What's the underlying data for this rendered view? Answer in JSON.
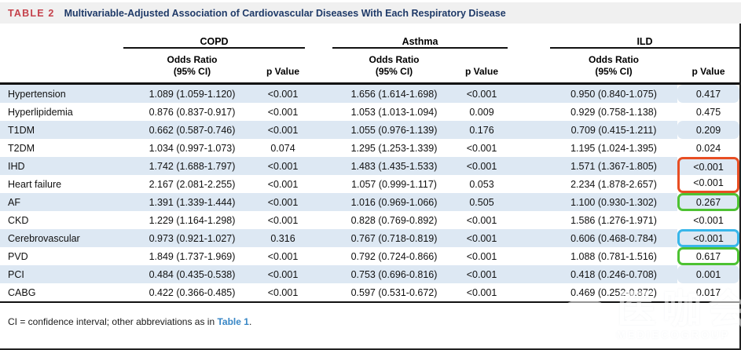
{
  "title": {
    "tag": "TABLE 2",
    "text": "Multivariable-Adjusted Association of Cardiovascular Diseases With Each Respiratory Disease"
  },
  "table": {
    "groups": [
      {
        "label": "COPD"
      },
      {
        "label": "Asthma"
      },
      {
        "label": "ILD"
      }
    ],
    "or_line1": "Odds Ratio",
    "or_line2": "(95% CI)",
    "p_label": "p Value",
    "rows": [
      {
        "label": "Hypertension",
        "copd_or": "1.089 (1.059-1.120)",
        "copd_p": "<0.001",
        "asthma_or": "1.656 (1.614-1.698)",
        "asthma_p": "<0.001",
        "ild_or": "0.950 (0.840-1.075)",
        "ild_p": "0.417",
        "ild_p_box": null
      },
      {
        "label": "Hyperlipidemia",
        "copd_or": "0.876 (0.837-0.917)",
        "copd_p": "<0.001",
        "asthma_or": "1.053 (1.013-1.094)",
        "asthma_p": "0.009",
        "ild_or": "0.929 (0.758-1.138)",
        "ild_p": "0.475",
        "ild_p_box": null
      },
      {
        "label": "T1DM",
        "copd_or": "0.662 (0.587-0.746)",
        "copd_p": "<0.001",
        "asthma_or": "1.055 (0.976-1.139)",
        "asthma_p": "0.176",
        "ild_or": "0.709 (0.415-1.211)",
        "ild_p": "0.209",
        "ild_p_box": null
      },
      {
        "label": "T2DM",
        "copd_or": "1.034 (0.997-1.073)",
        "copd_p": "0.074",
        "asthma_or": "1.295 (1.253-1.339)",
        "asthma_p": "<0.001",
        "ild_or": "1.195 (1.024-1.395)",
        "ild_p": "0.024",
        "ild_p_box": null
      },
      {
        "label": "IHD",
        "copd_or": "1.742 (1.688-1.797)",
        "copd_p": "<0.001",
        "asthma_or": "1.483 (1.435-1.533)",
        "asthma_p": "<0.001",
        "ild_or": "1.571 (1.367-1.805)",
        "ild_p": "<0.001",
        "ild_p_box": "red-top"
      },
      {
        "label": "Heart failure",
        "copd_or": "2.167 (2.081-2.255)",
        "copd_p": "<0.001",
        "asthma_or": "1.057 (0.999-1.117)",
        "asthma_p": "0.053",
        "ild_or": "2.234 (1.878-2.657)",
        "ild_p": "<0.001",
        "ild_p_box": "red-bottom"
      },
      {
        "label": "AF",
        "copd_or": "1.391 (1.339-1.444)",
        "copd_p": "<0.001",
        "asthma_or": "1.016 (0.969-1.066)",
        "asthma_p": "0.505",
        "ild_or": "1.100 (0.930-1.302)",
        "ild_p": "0.267",
        "ild_p_box": "green"
      },
      {
        "label": "CKD",
        "copd_or": "1.229 (1.164-1.298)",
        "copd_p": "<0.001",
        "asthma_or": "0.828 (0.769-0.892)",
        "asthma_p": "<0.001",
        "ild_or": "1.586 (1.276-1.971)",
        "ild_p": "<0.001",
        "ild_p_box": null
      },
      {
        "label": "Cerebrovascular",
        "copd_or": "0.973 (0.921-1.027)",
        "copd_p": "0.316",
        "asthma_or": "0.767 (0.718-0.819)",
        "asthma_p": "<0.001",
        "ild_or": "0.606 (0.468-0.784)",
        "ild_p": "<0.001",
        "ild_p_box": "blue"
      },
      {
        "label": "PVD",
        "copd_or": "1.849 (1.737-1.969)",
        "copd_p": "<0.001",
        "asthma_or": "0.792 (0.724-0.866)",
        "asthma_p": "<0.001",
        "ild_or": "1.088 (0.781-1.516)",
        "ild_p": "0.617",
        "ild_p_box": "green"
      },
      {
        "label": "PCI",
        "copd_or": "0.484 (0.435-0.538)",
        "copd_p": "<0.001",
        "asthma_or": "0.753 (0.696-0.816)",
        "asthma_p": "<0.001",
        "ild_or": "0.418 (0.246-0.708)",
        "ild_p": "0.001",
        "ild_p_box": null
      },
      {
        "label": "CABG",
        "copd_or": "0.422 (0.366-0.485)",
        "copd_p": "<0.001",
        "asthma_or": "0.597 (0.531-0.672)",
        "asthma_p": "<0.001",
        "ild_or": "0.469 (0.252-0.872)",
        "ild_p": "0.017",
        "ild_p_box": null
      }
    ]
  },
  "footnote": {
    "pre": "CI = confidence interval; other abbreviations as in ",
    "link": "Table 1",
    "post": "."
  },
  "watermark": {
    "cn": "医咖会",
    "en": "MEDIECOGROUP"
  },
  "colors": {
    "tag_red": "#c5414b",
    "title_navy": "#1f3a68",
    "row_stripe": "#dde8f3",
    "link_blue": "#3786c5",
    "highlight_red": "#e84e23",
    "highlight_green": "#4dc232",
    "highlight_blue": "#38b6ea"
  }
}
